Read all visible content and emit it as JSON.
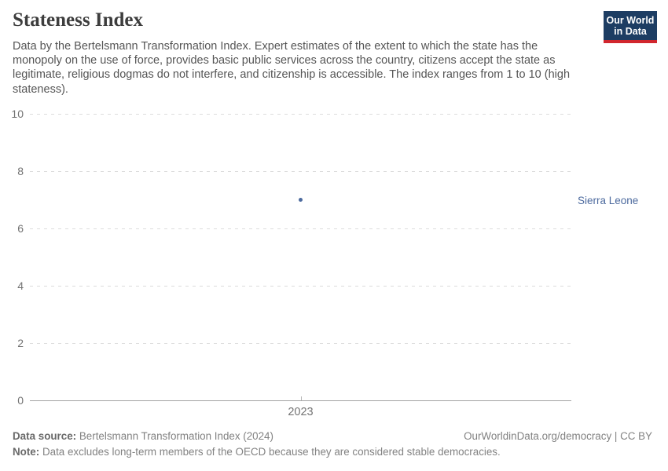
{
  "header": {
    "title": "Stateness Index",
    "subtitle": "Data by the Bertelsmann Transformation Index. Expert estimates of the extent to which the state has the monopoly on the use of force, provides basic public services across the country, citizens accept the state as legitimate, religious dogmas do not interfere, and citizenship is accessible. The index ranges from 1 to 10 (high stateness).",
    "logo": {
      "line1": "Our World",
      "line2": "in Data",
      "bg_color": "#1d3d63",
      "stripe_color": "#d1262e"
    }
  },
  "chart_data": {
    "type": "scatter",
    "title": "Stateness Index",
    "xlabel": "",
    "ylabel": "",
    "ylim": [
      0,
      10
    ],
    "yticks": [
      0,
      2,
      4,
      6,
      8,
      10
    ],
    "xticks": [
      "2023"
    ],
    "grid": "horizontal-dashed",
    "legend_position": "right-entity-label",
    "series": [
      {
        "name": "Sierra Leone",
        "color": "#4c6a9e",
        "points": [
          {
            "x": "2023",
            "y": 7
          }
        ]
      }
    ]
  },
  "footer": {
    "datasource_label": "Data source:",
    "datasource_value": "Bertelsmann Transformation Index (2024)",
    "license": "OurWorldinData.org/democracy | CC BY",
    "note_label": "Note:",
    "note_value": "Data excludes long-term members of the OECD because they are considered stable democracies."
  }
}
